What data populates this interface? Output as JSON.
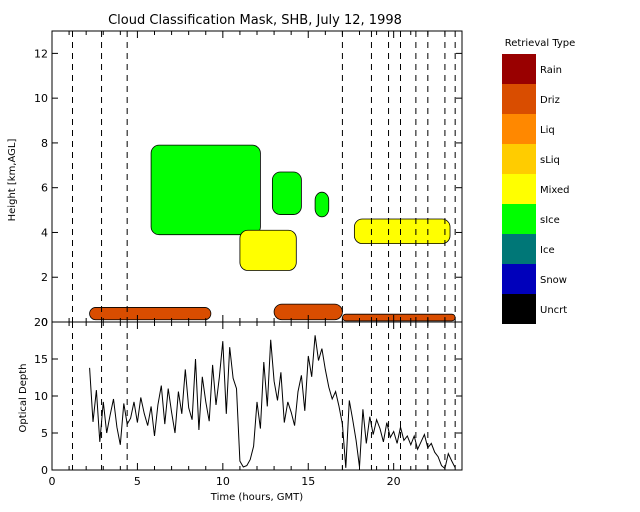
{
  "chart_data": [
    {
      "type": "heatmap",
      "title": "Cloud Classification Mask, SHB, July 12, 1998",
      "xlabel": "",
      "ylabel": "Height [km,AGL]",
      "xlim": [
        0,
        24
      ],
      "ylim": [
        0,
        13
      ],
      "yticks": [
        "0",
        "2",
        "4",
        "6",
        "8",
        "10",
        "12"
      ],
      "vertical_dashed_lines_hours": [
        1.2,
        2.9,
        4.4,
        17.0,
        18.7,
        19.7,
        20.4,
        21.3,
        22.0,
        23.0,
        23.6
      ],
      "colorbar": {
        "title": "Retrieval Type",
        "classes": [
          {
            "label": "Rain",
            "color": "#990000"
          },
          {
            "label": "Driz",
            "color": "#d94d00"
          },
          {
            "label": "Liq",
            "color": "#ff8800"
          },
          {
            "label": "sLiq",
            "color": "#ffcc00"
          },
          {
            "label": "Mixed",
            "color": "#ffff00"
          },
          {
            "label": "sIce",
            "color": "#00ff00"
          },
          {
            "label": "Ice",
            "color": "#007777"
          },
          {
            "label": "Snow",
            "color": "#0000bb"
          },
          {
            "label": "Uncrt",
            "color": "#000000"
          }
        ]
      },
      "regions": [
        {
          "class": "sIce",
          "x": [
            5.8,
            12.2
          ],
          "y": [
            3.9,
            7.9
          ]
        },
        {
          "class": "sIce",
          "x": [
            12.9,
            14.6
          ],
          "y": [
            4.8,
            6.7
          ]
        },
        {
          "class": "sIce",
          "x": [
            15.4,
            16.2
          ],
          "y": [
            4.7,
            5.8
          ]
        },
        {
          "class": "Mixed",
          "x": [
            11.0,
            14.3
          ],
          "y": [
            2.3,
            4.1
          ]
        },
        {
          "class": "Mixed",
          "x": [
            17.7,
            23.3
          ],
          "y": [
            3.5,
            4.6
          ]
        },
        {
          "class": "Driz",
          "x": [
            2.2,
            9.3
          ],
          "y": [
            0.1,
            0.65
          ]
        },
        {
          "class": "Driz",
          "x": [
            13.0,
            17.0
          ],
          "y": [
            0.1,
            0.8
          ]
        },
        {
          "class": "Driz",
          "x": [
            17.0,
            23.6
          ],
          "y": [
            0.05,
            0.35
          ]
        }
      ]
    },
    {
      "type": "line",
      "title": "",
      "xlabel": "Time (hours, GMT)",
      "ylabel": "Optical Depth",
      "xlim": [
        0,
        24
      ],
      "ylim": [
        0,
        20
      ],
      "xticks": [
        "0",
        "5",
        "10",
        "15",
        "20"
      ],
      "yticks": [
        "0",
        "5",
        "10",
        "15",
        "20"
      ],
      "vertical_dashed_lines_hours": [
        1.2,
        2.9,
        4.4,
        17.0,
        18.7,
        19.7,
        20.4,
        21.3,
        22.0,
        23.0,
        23.6
      ],
      "series": [
        {
          "x": [
            2.2,
            2.4,
            2.6,
            2.8,
            3.0,
            3.2,
            3.4,
            3.6,
            3.8,
            4.0,
            4.2,
            4.4,
            4.6,
            4.8,
            5.0,
            5.2,
            5.4,
            5.6,
            5.8,
            6.0,
            6.2,
            6.4,
            6.6,
            6.8,
            7.0,
            7.2,
            7.4,
            7.6,
            7.8,
            8.0,
            8.2,
            8.4,
            8.6,
            8.8,
            9.0,
            9.2,
            9.4,
            9.6,
            9.8,
            10.0,
            10.2,
            10.4,
            10.6,
            10.8,
            11.0,
            11.2,
            11.4,
            11.6,
            11.8,
            12.0,
            12.2,
            12.4,
            12.6,
            12.8,
            13.0,
            13.2,
            13.4,
            13.6,
            13.8,
            14.0,
            14.2,
            14.4,
            14.6,
            14.8,
            15.0,
            15.2,
            15.4,
            15.6,
            15.8,
            16.0,
            16.2,
            16.4,
            16.6,
            16.8,
            17.0,
            17.2,
            17.4,
            17.6,
            17.8,
            18.0,
            18.2,
            18.4,
            18.6,
            18.8,
            19.0,
            19.2,
            19.4,
            19.6,
            19.8,
            20.0,
            20.2,
            20.4,
            20.6,
            20.8,
            21.0,
            21.2,
            21.4,
            21.6,
            21.8,
            22.0,
            22.2,
            22.4,
            22.6,
            22.8,
            23.0,
            23.2,
            23.4,
            23.6
          ],
          "values": [
            13.8,
            6.5,
            10.8,
            3.8,
            9.2,
            5.0,
            7.4,
            9.6,
            5.8,
            3.4,
            9.0,
            6.2,
            7.0,
            9.2,
            6.4,
            9.8,
            7.6,
            6.0,
            8.6,
            4.6,
            8.8,
            11.4,
            6.2,
            11.0,
            7.8,
            5.0,
            10.6,
            7.6,
            13.6,
            8.4,
            6.8,
            15.0,
            5.4,
            12.6,
            9.2,
            6.6,
            14.2,
            8.8,
            12.6,
            17.4,
            7.6,
            16.6,
            12.4,
            11.0,
            1.2,
            0.4,
            0.6,
            1.4,
            3.2,
            9.2,
            5.6,
            14.6,
            8.6,
            17.6,
            12.0,
            9.4,
            13.2,
            6.4,
            9.2,
            7.8,
            6.0,
            10.6,
            12.8,
            8.0,
            15.4,
            12.6,
            18.2,
            14.8,
            16.4,
            13.6,
            11.2,
            9.6,
            10.6,
            8.6,
            6.2,
            0.3,
            9.4,
            6.8,
            4.0,
            0.4,
            8.2,
            3.6,
            7.2,
            4.8,
            6.8,
            5.6,
            3.8,
            6.4,
            4.4,
            5.2,
            3.6,
            5.8,
            4.0,
            4.6,
            3.4,
            4.6,
            2.8,
            3.8,
            4.8,
            3.0,
            3.6,
            2.4,
            1.8,
            0.6,
            0.2,
            2.2,
            1.2,
            0.3
          ]
        }
      ]
    }
  ]
}
